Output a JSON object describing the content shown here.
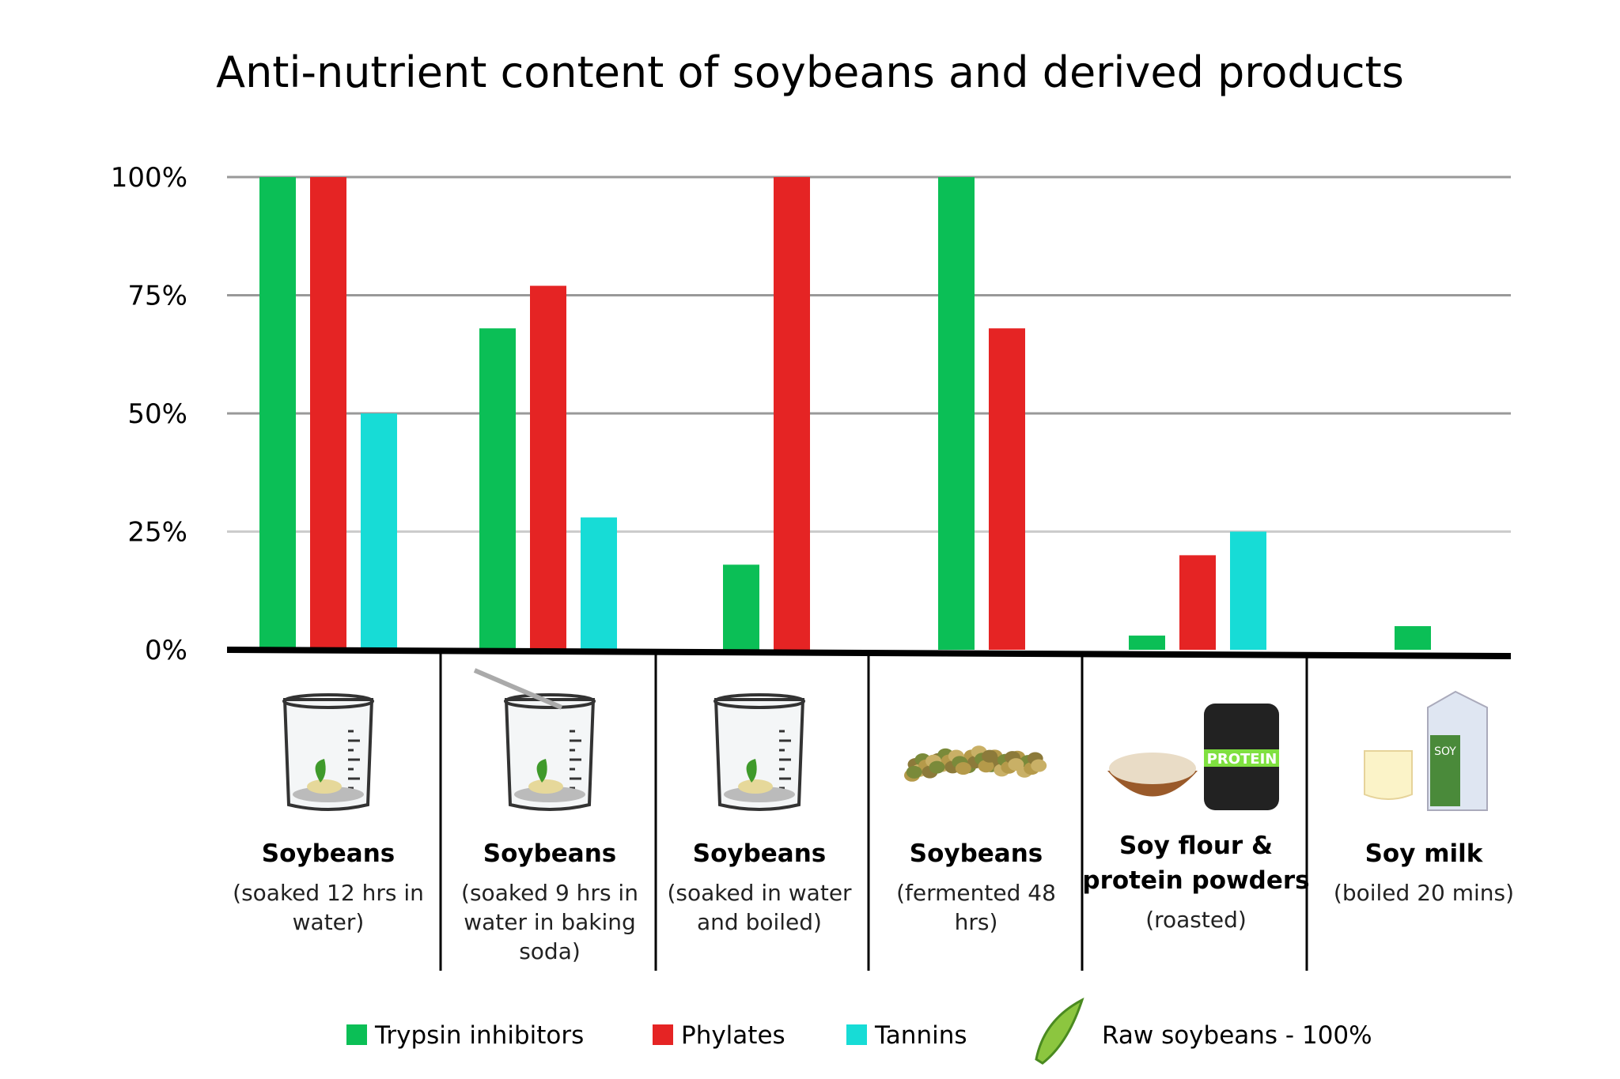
{
  "chart_data": {
    "type": "bar",
    "title": "Anti-nutrient content of soybeans and derived products",
    "ylim": [
      0,
      100
    ],
    "yticks": [
      "0%",
      "25%",
      "50%",
      "75%",
      "100%"
    ],
    "grid": true,
    "legend_placement": "bottom",
    "categories": [
      {
        "name": "Soybeans",
        "detail": [
          "(soaked 12 hrs in",
          "water)"
        ],
        "icon": "beaker-soybeans-icon"
      },
      {
        "name": "Soybeans",
        "detail": [
          "(soaked 9 hrs in",
          "water in baking",
          "soda)"
        ],
        "icon": "beaker-baking-soda-icon"
      },
      {
        "name": "Soybeans",
        "detail": [
          "(soaked in water",
          "and boiled)"
        ],
        "icon": "beaker-soybeans-icon"
      },
      {
        "name": "Soybeans",
        "detail": [
          "(fermented 48",
          "hrs)"
        ],
        "icon": "soybean-pile-icon"
      },
      {
        "name": [
          "Soy flour &",
          "protein powders"
        ],
        "detail": [
          "(roasted)"
        ],
        "icon": "flour-protein-icon"
      },
      {
        "name": "Soy milk",
        "detail": [
          "(boiled 20 mins)"
        ],
        "icon": "soy-milk-icon"
      }
    ],
    "series": [
      {
        "name": "Trypsin inhibitors",
        "color": "#0bbf56",
        "values": [
          100,
          68,
          18,
          100,
          3,
          5
        ]
      },
      {
        "name": "Phylates",
        "color": "#e52424",
        "values": [
          100,
          77,
          100,
          68,
          20,
          null
        ]
      },
      {
        "name": "Tannins",
        "color": "#17dcd6",
        "values": [
          50,
          28,
          null,
          null,
          25,
          null
        ]
      }
    ],
    "reference_note": "Raw soybeans - 100%",
    "reference_icon": "pea-pod-icon"
  }
}
